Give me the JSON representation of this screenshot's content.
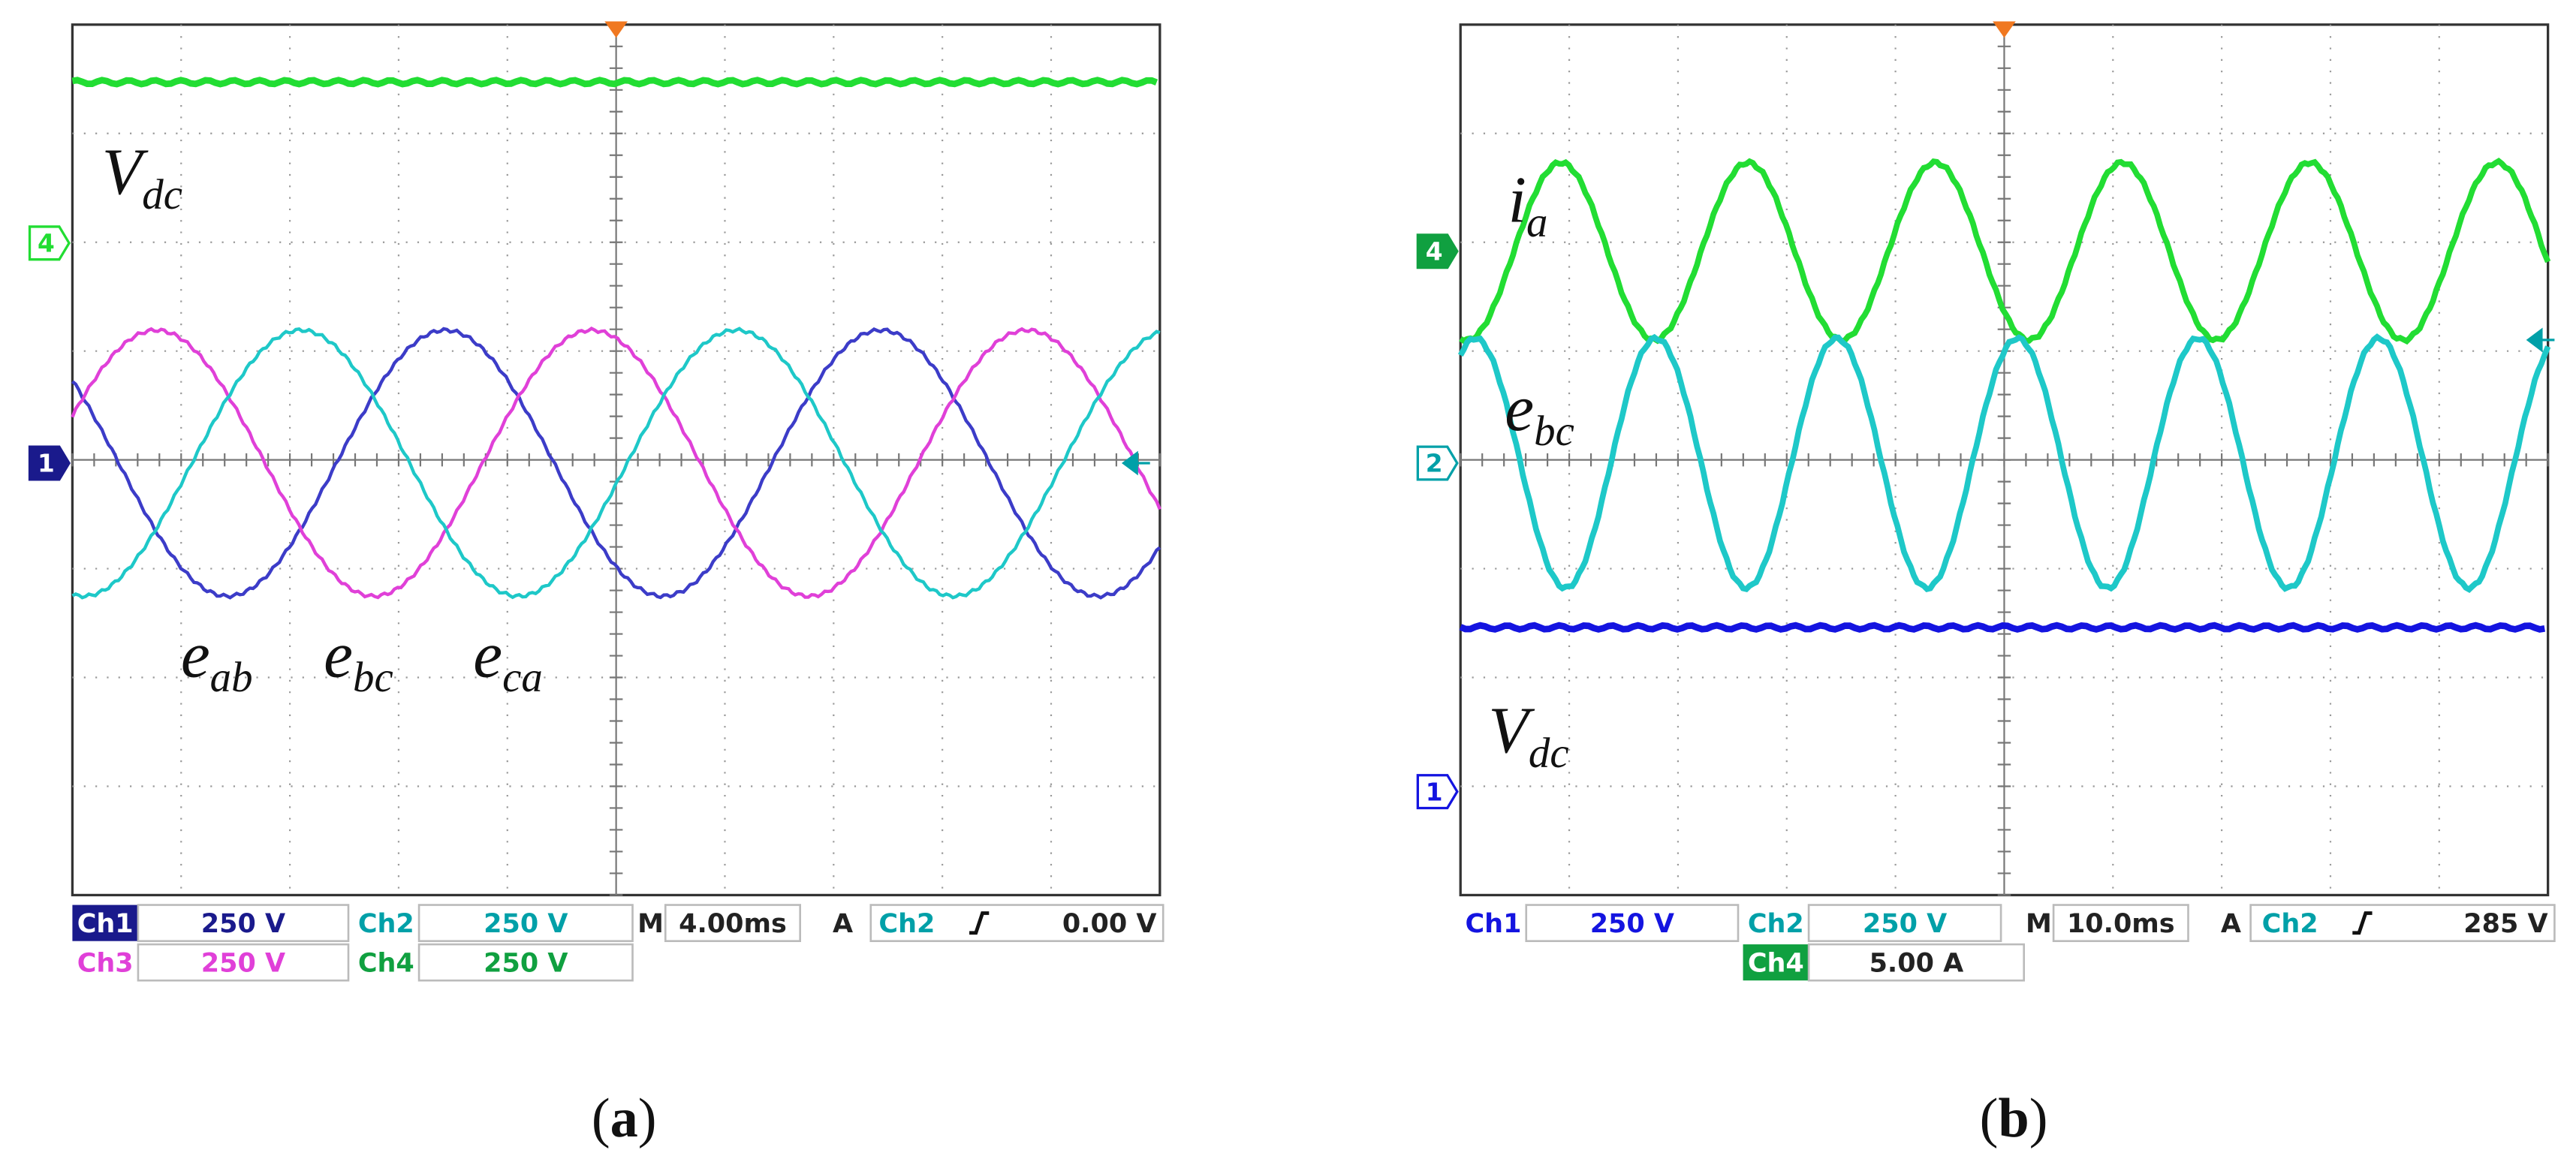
{
  "panels": [
    {
      "labels": [
        {
          "main": "V",
          "sub": "dc"
        },
        {
          "main": "e",
          "sub": "ab"
        },
        {
          "main": "e",
          "sub": "bc"
        },
        {
          "main": "e",
          "sub": "ca"
        }
      ],
      "markers": [
        "4",
        "1"
      ],
      "readouts": [
        [
          "Ch1",
          "250 V",
          "Ch2",
          "250 V",
          "M",
          "4.00ms",
          "A",
          "Ch2",
          "0.00 V"
        ],
        [
          "Ch3",
          "250 V",
          "Ch4",
          "250 V"
        ]
      ],
      "caption": [
        "(",
        "a",
        ")"
      ]
    },
    {
      "labels": [
        {
          "main": "i",
          "sub": "a"
        },
        {
          "main": "e",
          "sub": "bc"
        },
        {
          "main": "V",
          "sub": "dc"
        }
      ],
      "markers": [
        "4",
        "2",
        "1"
      ],
      "readouts": [
        [
          "Ch1",
          "250 V",
          "Ch2",
          "250 V",
          "M",
          "10.0ms",
          "A",
          "Ch2",
          "285 V"
        ],
        [
          "Ch4",
          "5.00 A"
        ]
      ],
      "caption": [
        "(",
        "b",
        ")"
      ]
    }
  ]
}
